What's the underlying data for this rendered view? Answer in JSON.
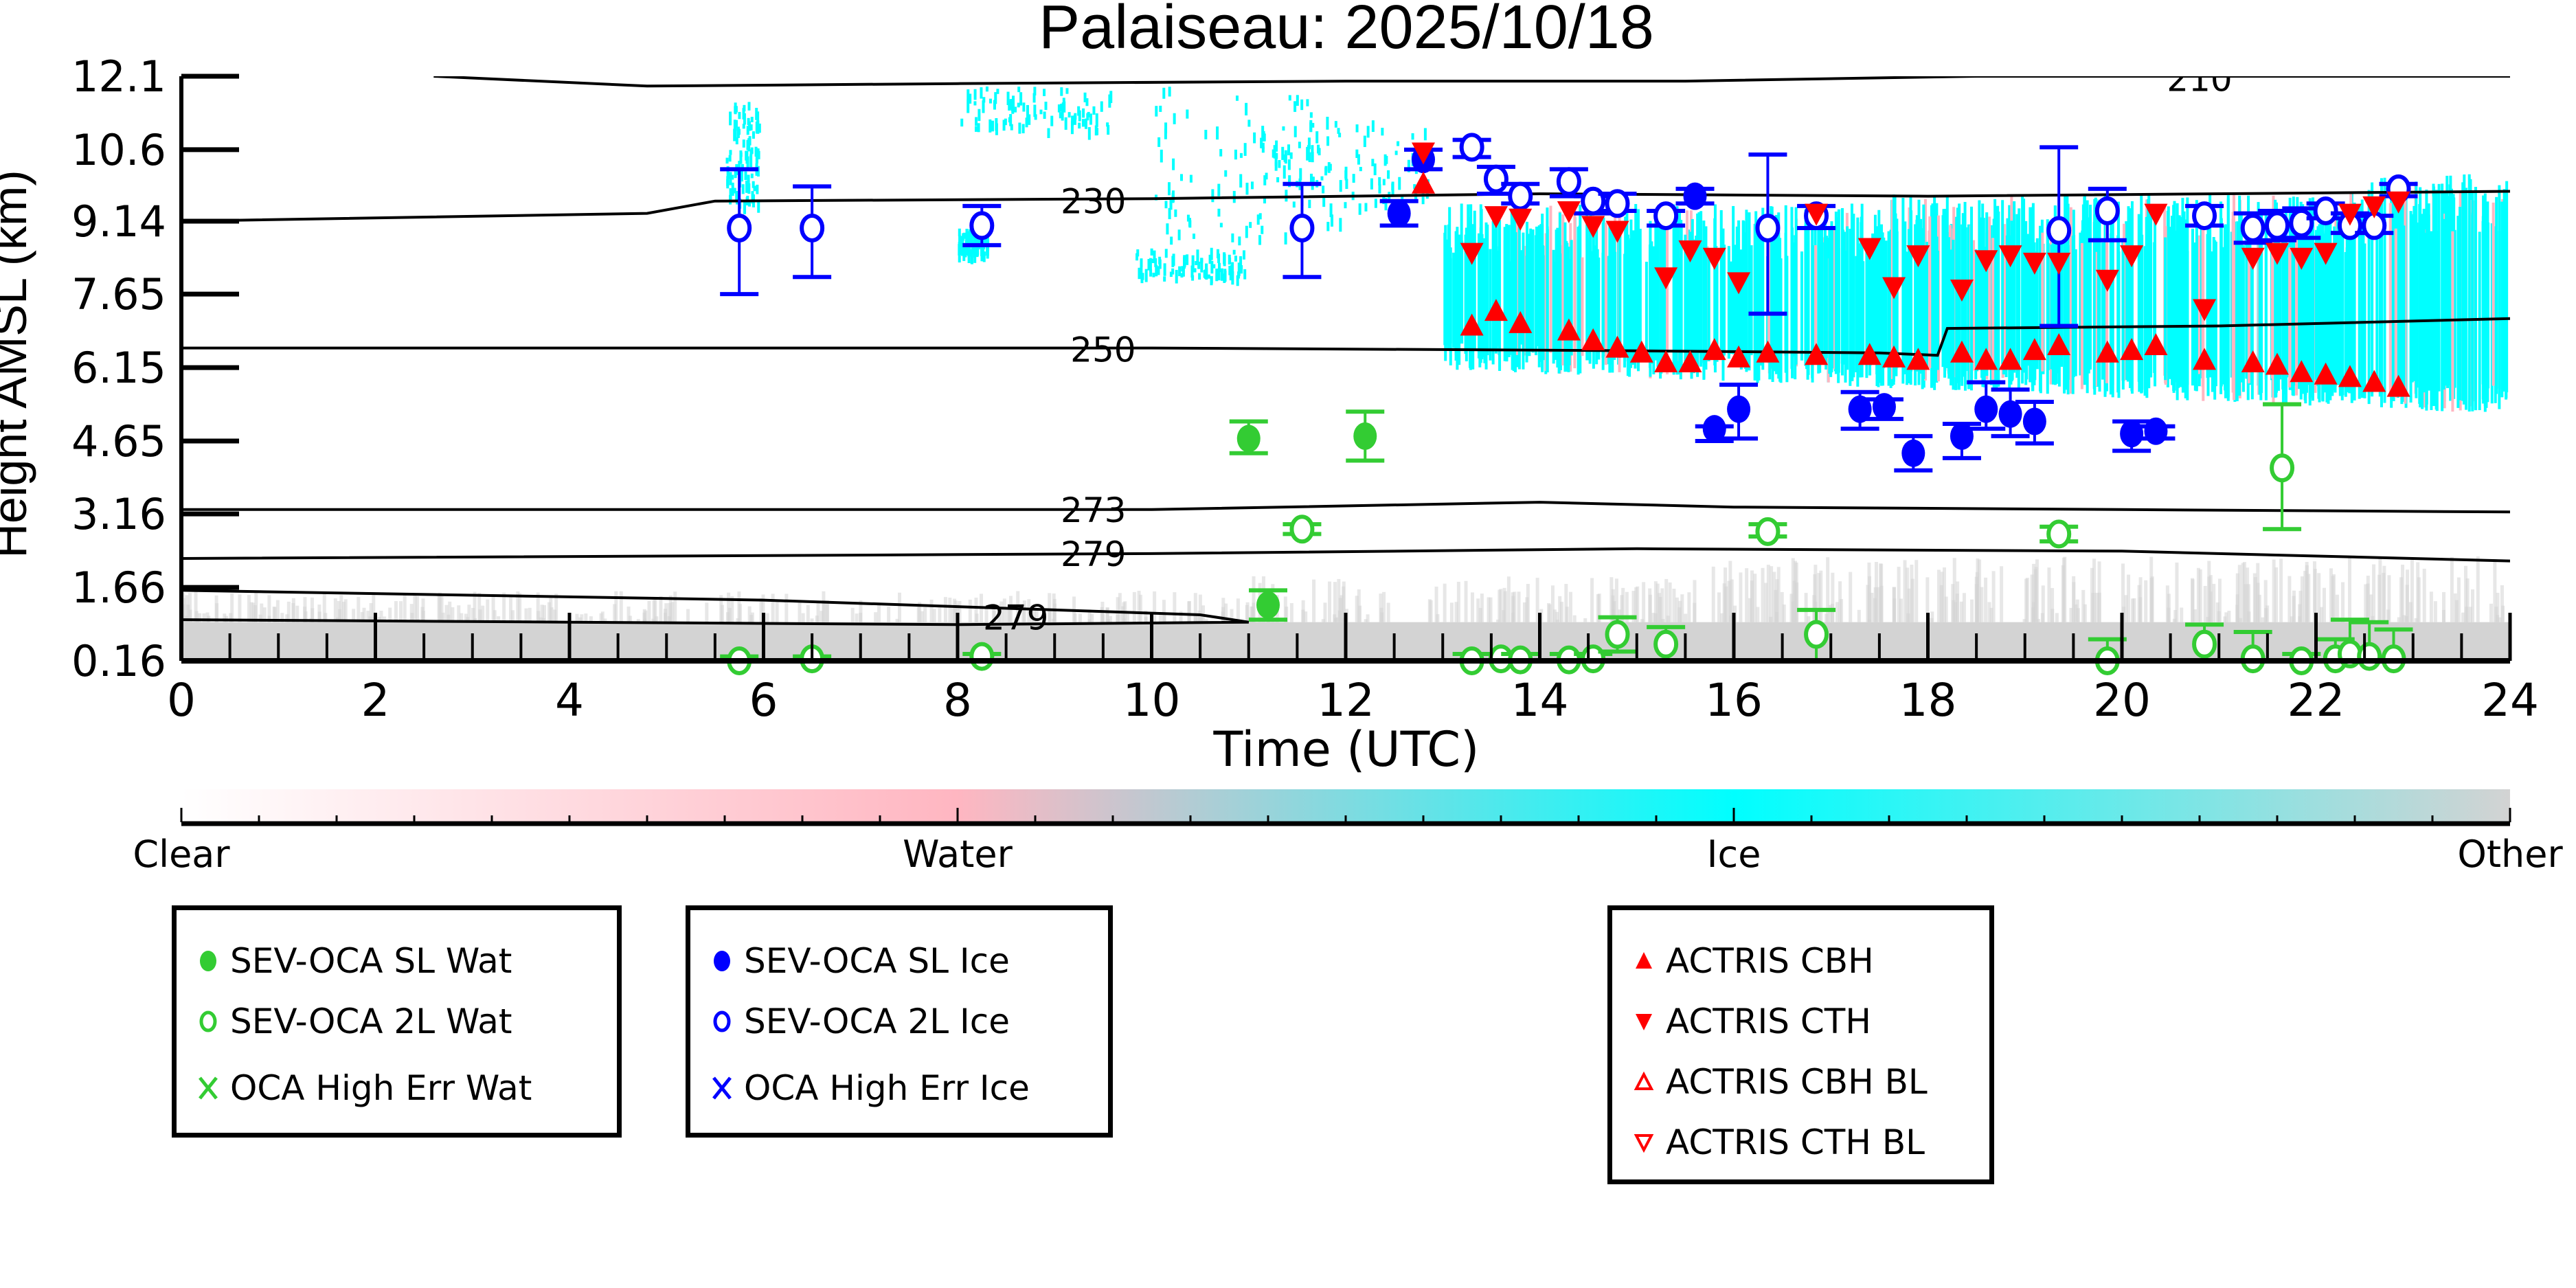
{
  "chart_data": {
    "type": "scatter",
    "title": "Palaiseau: 2025/10/18",
    "xlabel": "Time (UTC)",
    "ylabel": "Height AMSL (km)",
    "xlim": [
      0,
      24
    ],
    "ylim": [
      0.16,
      12.1
    ],
    "xticks": [
      "0",
      "2",
      "4",
      "6",
      "8",
      "10",
      "12",
      "14",
      "16",
      "18",
      "20",
      "22",
      "24"
    ],
    "xtick_values": [
      0,
      2,
      4,
      6,
      8,
      10,
      12,
      14,
      16,
      18,
      20,
      22,
      24
    ],
    "yticks": [
      "12.1",
      "10.6",
      "9.14",
      "7.65",
      "6.15",
      "4.65",
      "3.16",
      "1.66",
      "0.16"
    ],
    "ytick_values": [
      12.1,
      10.6,
      9.14,
      7.65,
      6.15,
      4.65,
      3.16,
      1.66,
      0.16
    ],
    "grid": false,
    "colors": {
      "water": "#33cc33",
      "ice": "#0000ff",
      "actris": "#ff0000",
      "cloud_ice": "#00ffff",
      "cloud_water": "#ffb6c1",
      "other": "#d3d3d3"
    },
    "contours": [
      {
        "label": "210",
        "points": [
          [
            2.6,
            12.1
          ],
          [
            4.8,
            11.9
          ],
          [
            8,
            11.95
          ],
          [
            12,
            12.0
          ],
          [
            15.5,
            12.0
          ],
          [
            18.5,
            12.1
          ],
          [
            24,
            12.1
          ]
        ]
      },
      {
        "label": "230",
        "points": [
          [
            0,
            9.14
          ],
          [
            4.8,
            9.3
          ],
          [
            5.5,
            9.55
          ],
          [
            10,
            9.6
          ],
          [
            14,
            9.7
          ],
          [
            18,
            9.65
          ],
          [
            24,
            9.75
          ]
        ]
      },
      {
        "label": "250",
        "points": [
          [
            0,
            6.55
          ],
          [
            10,
            6.55
          ],
          [
            14.5,
            6.5
          ],
          [
            17.5,
            6.45
          ],
          [
            18.1,
            6.4
          ],
          [
            18.2,
            6.95
          ],
          [
            21,
            7.0
          ],
          [
            24,
            7.15
          ]
        ]
      },
      {
        "label": "273",
        "points": [
          [
            0,
            3.25
          ],
          [
            10,
            3.25
          ],
          [
            14,
            3.4
          ],
          [
            16,
            3.3
          ],
          [
            20,
            3.25
          ],
          [
            24,
            3.2
          ]
        ]
      },
      {
        "label": "279",
        "points": [
          [
            0,
            2.25
          ],
          [
            10,
            2.35
          ],
          [
            15,
            2.45
          ],
          [
            20,
            2.4
          ],
          [
            24,
            2.2
          ]
        ]
      },
      {
        "label": "279",
        "points": [
          [
            0,
            1.6
          ],
          [
            6,
            1.4
          ],
          [
            10.5,
            1.1
          ],
          [
            11,
            0.95
          ],
          [
            8,
            0.9
          ],
          [
            4,
            0.95
          ],
          [
            0,
            1.0
          ]
        ]
      }
    ],
    "series": [
      {
        "name": "SEV-OCA SL Wat",
        "marker": "filled-circle",
        "color": "#33cc33",
        "points": [
          [
            11.0,
            4.7,
            4.4,
            5.05
          ],
          [
            12.2,
            4.75,
            4.25,
            5.25
          ],
          [
            11.2,
            1.3,
            1.0,
            1.6
          ]
        ]
      },
      {
        "name": "SEV-OCA 2L Wat",
        "marker": "open-circle",
        "color": "#33cc33",
        "points": [
          [
            5.75,
            0.16,
            0.16,
            0.25
          ],
          [
            6.5,
            0.2,
            0.16,
            0.25
          ],
          [
            8.25,
            0.25,
            0.16,
            0.3
          ],
          [
            11.55,
            2.85,
            2.75,
            2.95
          ],
          [
            13.3,
            0.16,
            0.16,
            0.3
          ],
          [
            13.6,
            0.2,
            0.16,
            0.3
          ],
          [
            13.8,
            0.18,
            0.16,
            0.3
          ],
          [
            14.3,
            0.18,
            0.16,
            0.3
          ],
          [
            14.55,
            0.2,
            0.16,
            0.3
          ],
          [
            14.8,
            0.7,
            0.35,
            1.05
          ],
          [
            15.3,
            0.5,
            0.16,
            0.85
          ],
          [
            16.35,
            2.8,
            2.7,
            2.95
          ],
          [
            16.85,
            0.7,
            0.16,
            1.2
          ],
          [
            19.35,
            2.75,
            2.6,
            2.9
          ],
          [
            19.85,
            0.16,
            0.16,
            0.6
          ],
          [
            20.85,
            0.5,
            0.16,
            0.9
          ],
          [
            21.35,
            0.2,
            0.16,
            0.75
          ],
          [
            21.65,
            4.1,
            2.85,
            5.4
          ],
          [
            21.85,
            0.16,
            0.16,
            0.3
          ],
          [
            22.2,
            0.2,
            0.16,
            0.6
          ],
          [
            22.35,
            0.3,
            0.16,
            1.0
          ],
          [
            22.55,
            0.25,
            0.16,
            0.95
          ],
          [
            22.8,
            0.2,
            0.16,
            0.8
          ]
        ]
      },
      {
        "name": "OCA High Err Wat",
        "marker": "x",
        "color": "#33cc33",
        "points": []
      },
      {
        "name": "SEV-OCA SL Ice",
        "marker": "filled-circle",
        "color": "#0000ff",
        "points": [
          [
            12.55,
            9.3,
            9.05,
            9.55
          ],
          [
            12.8,
            10.4,
            10.2,
            10.6
          ],
          [
            15.6,
            9.65,
            9.5,
            9.8
          ],
          [
            15.8,
            4.9,
            4.65,
            4.95
          ],
          [
            16.05,
            5.3,
            4.7,
            5.8
          ],
          [
            17.3,
            5.3,
            4.9,
            5.65
          ],
          [
            17.55,
            5.35,
            5.1,
            5.5
          ],
          [
            17.85,
            4.4,
            4.05,
            4.75
          ],
          [
            18.35,
            4.75,
            4.3,
            5.0
          ],
          [
            18.6,
            5.3,
            4.9,
            5.85
          ],
          [
            18.85,
            5.2,
            4.75,
            5.7
          ],
          [
            19.1,
            5.05,
            4.6,
            5.45
          ],
          [
            20.1,
            4.8,
            4.45,
            5.05
          ],
          [
            20.35,
            4.85,
            4.7,
            4.95
          ]
        ]
      },
      {
        "name": "SEV-OCA 2L Ice",
        "marker": "open-circle",
        "color": "#0000ff",
        "points": [
          [
            5.75,
            9.0,
            7.65,
            10.2
          ],
          [
            6.5,
            9.0,
            8.0,
            9.85
          ],
          [
            8.25,
            9.05,
            8.65,
            9.45
          ],
          [
            11.55,
            9.0,
            8.0,
            9.9
          ],
          [
            13.3,
            10.65,
            10.45,
            10.8
          ],
          [
            13.55,
            10.0,
            9.7,
            10.25
          ],
          [
            13.8,
            9.65,
            9.5,
            9.9
          ],
          [
            14.3,
            9.95,
            9.65,
            10.2
          ],
          [
            14.55,
            9.55,
            9.3,
            9.65
          ],
          [
            14.8,
            9.5,
            9.35,
            9.7
          ],
          [
            15.3,
            9.25,
            9.05,
            9.35
          ],
          [
            16.35,
            9.0,
            7.25,
            10.5
          ],
          [
            16.85,
            9.25,
            9.0,
            9.45
          ],
          [
            19.35,
            8.95,
            7.0,
            10.65
          ],
          [
            19.85,
            9.35,
            8.75,
            9.8
          ],
          [
            20.85,
            9.25,
            9.05,
            9.45
          ],
          [
            21.35,
            9.0,
            8.7,
            9.3
          ],
          [
            21.6,
            9.05,
            8.75,
            9.35
          ],
          [
            21.85,
            9.1,
            8.8,
            9.4
          ],
          [
            22.1,
            9.35,
            9.2,
            9.5
          ],
          [
            22.35,
            9.05,
            8.9,
            9.3
          ],
          [
            22.6,
            9.05,
            8.9,
            9.25
          ],
          [
            22.85,
            9.8,
            9.65,
            9.9
          ]
        ]
      },
      {
        "name": "OCA High Err Ice",
        "marker": "x",
        "color": "#0000ff",
        "points": []
      },
      {
        "name": "ACTRIS CBH",
        "marker": "triangle-up",
        "color": "#ff0000",
        "points": [
          [
            12.8,
            9.9
          ],
          [
            13.3,
            7.0
          ],
          [
            13.55,
            7.3
          ],
          [
            13.8,
            7.05
          ],
          [
            14.3,
            6.9
          ],
          [
            14.55,
            6.7
          ],
          [
            14.8,
            6.55
          ],
          [
            15.05,
            6.45
          ],
          [
            15.3,
            6.25
          ],
          [
            15.55,
            6.25
          ],
          [
            15.8,
            6.5
          ],
          [
            16.05,
            6.35
          ],
          [
            16.35,
            6.45
          ],
          [
            16.85,
            6.4
          ],
          [
            17.4,
            6.4
          ],
          [
            17.65,
            6.35
          ],
          [
            17.9,
            6.3
          ],
          [
            18.35,
            6.45
          ],
          [
            18.6,
            6.3
          ],
          [
            18.85,
            6.3
          ],
          [
            19.1,
            6.5
          ],
          [
            19.35,
            6.6
          ],
          [
            19.85,
            6.45
          ],
          [
            20.1,
            6.5
          ],
          [
            20.35,
            6.6
          ],
          [
            20.85,
            6.3
          ],
          [
            21.35,
            6.25
          ],
          [
            21.6,
            6.2
          ],
          [
            21.85,
            6.05
          ],
          [
            22.1,
            6.0
          ],
          [
            22.35,
            5.95
          ],
          [
            22.6,
            5.85
          ],
          [
            22.85,
            5.75
          ]
        ]
      },
      {
        "name": "ACTRIS CTH",
        "marker": "triangle-down",
        "color": "#ff0000",
        "points": [
          [
            12.8,
            10.55
          ],
          [
            13.3,
            8.5
          ],
          [
            13.55,
            9.25
          ],
          [
            13.8,
            9.2
          ],
          [
            14.3,
            9.35
          ],
          [
            14.55,
            9.05
          ],
          [
            14.8,
            8.95
          ],
          [
            15.3,
            8.0
          ],
          [
            15.55,
            8.55
          ],
          [
            15.8,
            8.4
          ],
          [
            16.05,
            7.9
          ],
          [
            16.85,
            9.3
          ],
          [
            17.4,
            8.6
          ],
          [
            17.65,
            7.8
          ],
          [
            17.9,
            8.45
          ],
          [
            18.35,
            7.75
          ],
          [
            18.6,
            8.35
          ],
          [
            18.85,
            8.45
          ],
          [
            19.1,
            8.3
          ],
          [
            19.35,
            8.3
          ],
          [
            19.85,
            7.95
          ],
          [
            20.1,
            8.45
          ],
          [
            20.35,
            9.3
          ],
          [
            20.85,
            7.35
          ],
          [
            21.35,
            8.4
          ],
          [
            21.6,
            8.5
          ],
          [
            21.85,
            8.4
          ],
          [
            22.1,
            8.5
          ],
          [
            22.35,
            9.3
          ],
          [
            22.6,
            9.45
          ],
          [
            22.85,
            9.55
          ]
        ]
      },
      {
        "name": "ACTRIS CBH BL",
        "marker": "open-triangle-up",
        "color": "#ff0000",
        "points": []
      },
      {
        "name": "ACTRIS CTH BL",
        "marker": "open-triangle-down",
        "color": "#ff0000",
        "points": []
      }
    ],
    "colorbar": {
      "labels": [
        "Clear",
        "Water",
        "Ice",
        "Other"
      ],
      "colors": [
        "#ffffff",
        "#ffb6c1",
        "#00ffff",
        "#d3d3d3"
      ]
    },
    "legends": [
      {
        "items": [
          {
            "label": "SEV-OCA SL Wat",
            "marker": "filled-circle",
            "color": "#33cc33"
          },
          {
            "label": "SEV-OCA 2L Wat",
            "marker": "open-circle",
            "color": "#33cc33"
          },
          {
            "label": "OCA High Err Wat",
            "marker": "x",
            "color": "#33cc33"
          }
        ]
      },
      {
        "items": [
          {
            "label": "SEV-OCA SL Ice",
            "marker": "filled-circle",
            "color": "#0000ff"
          },
          {
            "label": "SEV-OCA 2L Ice",
            "marker": "open-circle",
            "color": "#0000ff"
          },
          {
            "label": "OCA High Err Ice",
            "marker": "x",
            "color": "#0000ff"
          }
        ]
      },
      {
        "items": [
          {
            "label": "ACTRIS CBH",
            "marker": "triangle-up",
            "color": "#ff0000"
          },
          {
            "label": "ACTRIS CTH",
            "marker": "triangle-down",
            "color": "#ff0000"
          },
          {
            "label": "ACTRIS CBH BL",
            "marker": "open-triangle-up",
            "color": "#ff0000"
          },
          {
            "label": "ACTRIS CTH BL",
            "marker": "open-triangle-down",
            "color": "#ff0000"
          }
        ]
      }
    ]
  }
}
